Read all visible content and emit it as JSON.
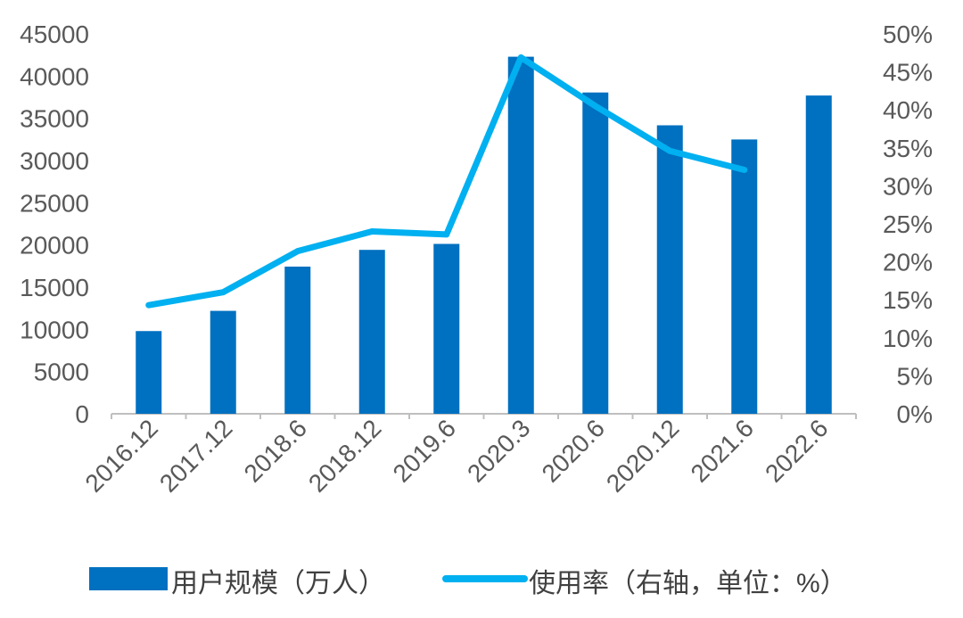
{
  "chart_data": {
    "type": "bar",
    "categories": [
      "2016.12",
      "2017.12",
      "2018.6",
      "2018.12",
      "2019.6",
      "2020.3",
      "2020.6",
      "2020.12",
      "2021.6",
      "2022.6"
    ],
    "series": [
      {
        "name": "用户规模（万人）",
        "type": "bar",
        "axis": "left",
        "color": "#0070C0",
        "values": [
          9798,
          12193,
          17433,
          19416,
          20123,
          42296,
          38060,
          34171,
          32493,
          37700
        ]
      },
      {
        "name": "使用率（右轴，单位：%）",
        "type": "line",
        "axis": "right",
        "color": "#00B0F0",
        "values": [
          14.3,
          16.0,
          21.4,
          24.0,
          23.6,
          46.9,
          40.5,
          34.6,
          32.1,
          null
        ]
      }
    ],
    "y_left": {
      "min": 0,
      "max": 45000,
      "step": 5000
    },
    "y_right": {
      "min": 0,
      "max": 50,
      "step": 5,
      "unit": "%"
    },
    "legend": {
      "position": "bottom"
    },
    "grid": false
  }
}
